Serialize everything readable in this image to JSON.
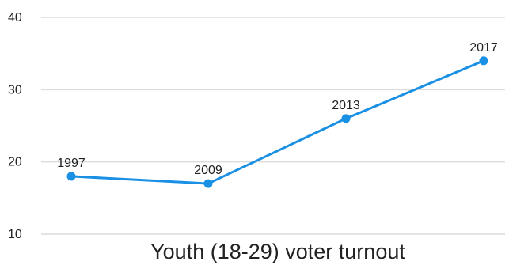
{
  "chart_data": {
    "type": "line",
    "title": "",
    "xlabel": "Youth (18-29) voter turnout",
    "ylabel": "",
    "x": [
      "1997",
      "2009",
      "2013",
      "2017"
    ],
    "series": [
      {
        "values": [
          18,
          17,
          26,
          34
        ],
        "point_labels": [
          "1997",
          "2009",
          "2013",
          "2017"
        ]
      }
    ],
    "ylim": [
      10,
      40
    ],
    "yticks": [
      "10",
      "20",
      "30",
      "40"
    ],
    "grid": true,
    "legend": "none",
    "colors": {
      "line": "#1a90e5",
      "grid": "#dcdcdc",
      "text": "#222222"
    }
  }
}
